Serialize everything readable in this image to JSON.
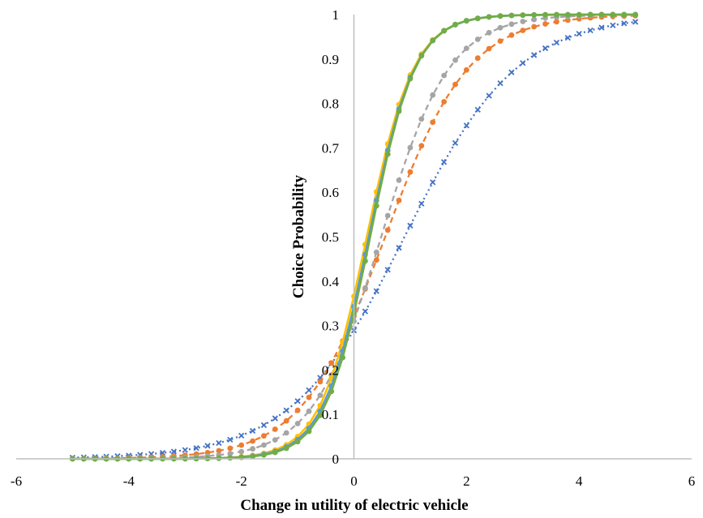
{
  "chart_data": {
    "type": "line",
    "title": "",
    "xlabel": "Change in utility of electric vehicle",
    "ylabel": "Choice Probability",
    "xlim": [
      -6,
      6
    ],
    "ylim": [
      0,
      1
    ],
    "x_ticks": [
      "-6",
      "-4",
      "-2",
      "0",
      "2",
      "4",
      "6"
    ],
    "y_ticks": [
      "0",
      "0.1",
      "0.2",
      "0.3",
      "0.4",
      "0.5",
      "0.6",
      "0.7",
      "0.8",
      "0.9",
      "1"
    ],
    "grid": false,
    "legend": "none",
    "series": [
      {
        "name": "series-1",
        "color": "#4472C4",
        "style": "dotted",
        "marker": "cross",
        "scale": 1.0,
        "shift": 0.9
      },
      {
        "name": "series-2",
        "color": "#ED7D31",
        "style": "dashed",
        "marker": "circle",
        "scale": 1.35,
        "shift": 0.75
      },
      {
        "name": "series-3",
        "color": "#A5A5A5",
        "style": "dashed",
        "marker": "circle",
        "scale": 1.65,
        "shift": 0.8
      },
      {
        "name": "series-4",
        "color": "#FFC000",
        "style": "solid",
        "marker": "circle",
        "scale": 2.4,
        "shift": 0.55
      },
      {
        "name": "series-5",
        "color": "#5B9BD5",
        "style": "solid",
        "marker": "circle",
        "scale": 2.45,
        "shift": 0.65
      },
      {
        "name": "series-6",
        "color": "#70AD47",
        "style": "solid",
        "marker": "circle",
        "scale": 2.5,
        "shift": 0.72
      }
    ]
  }
}
